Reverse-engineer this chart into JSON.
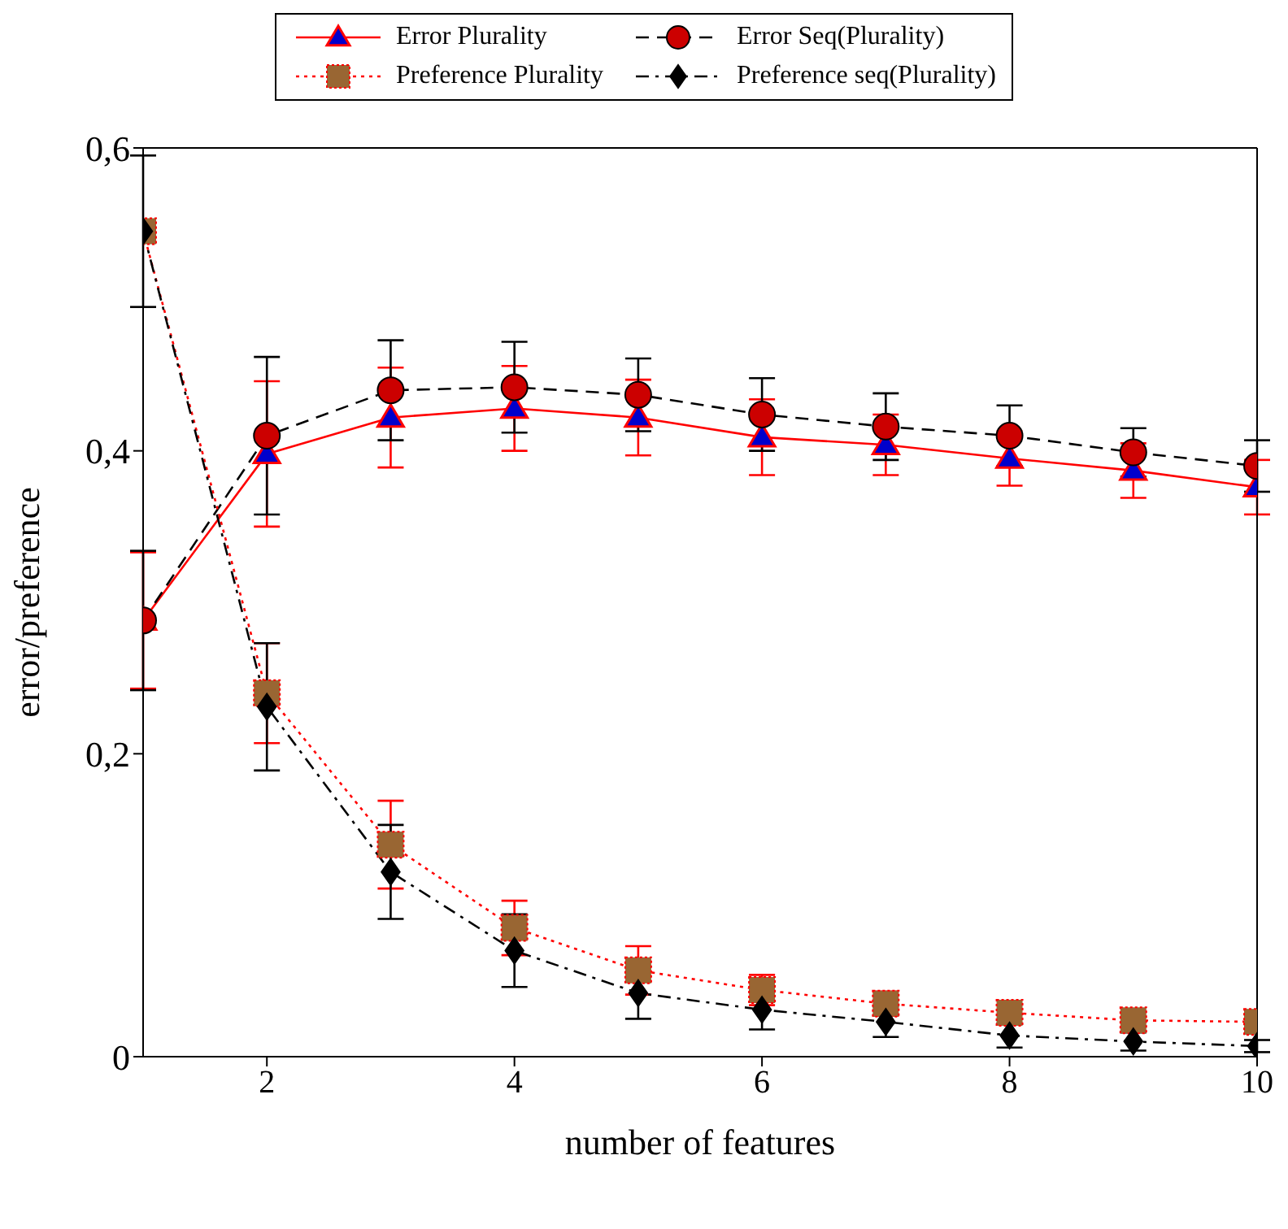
{
  "chart_data": {
    "type": "line",
    "xlabel": "number of features",
    "ylabel": "error/preference",
    "x": [
      1,
      2,
      3,
      4,
      5,
      6,
      7,
      8,
      9,
      10
    ],
    "xlim": [
      1,
      10
    ],
    "xticks": [
      2,
      4,
      6,
      8,
      10
    ],
    "ylim": [
      0,
      0.6
    ],
    "yticks": [
      0,
      {
        "value": 0.2,
        "label": "0,2"
      },
      {
        "value": 0.4,
        "label": "0,4"
      },
      {
        "value": 0.6,
        "label": "0,6"
      }
    ],
    "grid": false,
    "legend": "top",
    "series": [
      {
        "name": "Error Plurality",
        "color": "#ff0000",
        "colors": [
          "#0000cc",
          "#0000cc",
          "#0000cc",
          "#0000cc",
          "#0000cc",
          "#0000cc",
          "#0000cc",
          "#0000cc",
          "#0000cc",
          "#0000cc"
        ],
        "marker": "triangle",
        "line_style": "solid",
        "values": [
          0.288,
          0.398,
          0.422,
          0.428,
          0.422,
          0.409,
          0.404,
          0.395,
          0.387,
          0.376
        ],
        "errors": [
          0.045,
          0.048,
          0.033,
          0.028,
          0.025,
          0.025,
          0.02,
          0.018,
          0.018,
          0.018
        ]
      },
      {
        "name": "Error Seq(Plurality)",
        "color": "#000000",
        "colors": [
          "#cc0000",
          "#cc0000",
          "#cc0000",
          "#cc0000",
          "#cc0000",
          "#cc0000",
          "#cc0000",
          "#cc0000",
          "#cc0000",
          "#cc0000"
        ],
        "marker": "circle",
        "line_style": "dashed",
        "values": [
          0.288,
          0.41,
          0.44,
          0.442,
          0.437,
          0.424,
          0.416,
          0.41,
          0.399,
          0.39
        ],
        "errors": [
          0.046,
          0.052,
          0.033,
          0.03,
          0.024,
          0.024,
          0.022,
          0.02,
          0.016,
          0.017
        ]
      },
      {
        "name": "Preference Plurality",
        "color": "#ff0000",
        "colors": [
          "#996633",
          "#996633",
          "#996633",
          "#996633",
          "#996633",
          "#996633",
          "#996633",
          "#996633",
          "#996633",
          "#996633"
        ],
        "marker": "square",
        "line_style": "dotted",
        "values": [
          0.545,
          0.24,
          0.14,
          0.085,
          0.057,
          0.044,
          0.035,
          0.029,
          0.024,
          0.023
        ],
        "errors": [
          null,
          0.033,
          0.029,
          0.018,
          0.016,
          0.01,
          0.008,
          null,
          null,
          null
        ]
      },
      {
        "name": "Preference seq(Plurality)",
        "color": "#000000",
        "colors": [
          "#000000",
          "#000000",
          "#000000",
          "#000000",
          "#000000",
          "#000000",
          "#000000",
          "#000000",
          "#000000",
          "#000000"
        ],
        "marker": "diamond",
        "line_style": "dashdot",
        "values": [
          0.545,
          0.231,
          0.122,
          0.07,
          0.042,
          0.031,
          0.023,
          0.014,
          0.01,
          0.007
        ],
        "errors": [
          0.05,
          0.042,
          0.031,
          0.024,
          0.017,
          0.013,
          0.01,
          0.008,
          0.006,
          0.004
        ]
      }
    ]
  }
}
